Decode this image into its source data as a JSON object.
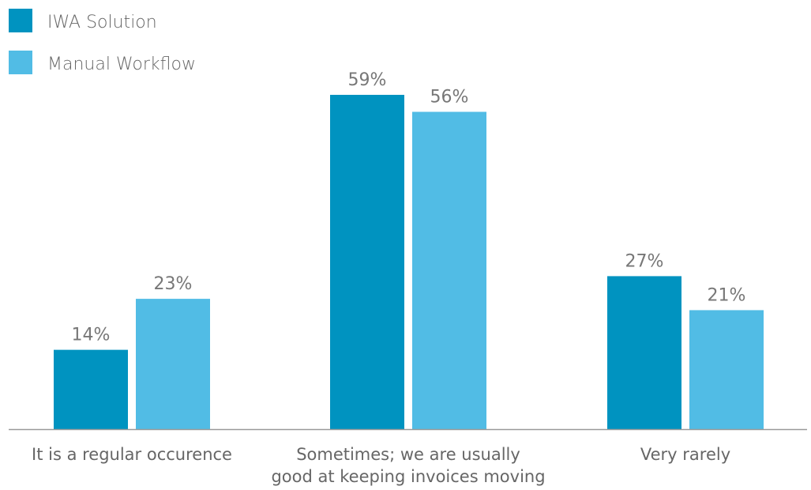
{
  "chart_data": {
    "type": "bar",
    "title": "",
    "xlabel": "",
    "ylabel": "",
    "categories": [
      [
        "It is a regular occurence"
      ],
      [
        "Sometimes; we are usually",
        "good at keeping invoices moving"
      ],
      [
        "Very rarely"
      ]
    ],
    "series": [
      {
        "name": "IWA Solution",
        "values": [
          14,
          59,
          27
        ],
        "labels": [
          "14%",
          "59%",
          "27%"
        ],
        "color": "#0093c0"
      },
      {
        "name": "Manual Workflow",
        "values": [
          23,
          56,
          21
        ],
        "labels": [
          "23%",
          "56%",
          "21%"
        ],
        "color": "#51bce5"
      }
    ],
    "ylim": [
      0,
      59
    ],
    "grid": false,
    "legend_position": "top-left",
    "axis_color": "#999999"
  }
}
